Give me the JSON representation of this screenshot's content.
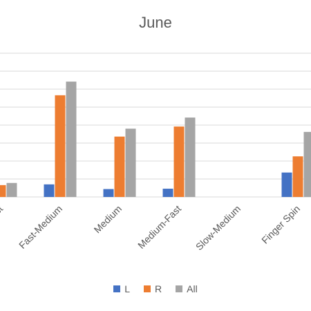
{
  "chart_data": {
    "type": "bar",
    "title": "June",
    "categories": [
      "Fast",
      "Fast-Medium",
      "Medium",
      "Medium-Fast",
      "Slow-Medium",
      "Finger Spin"
    ],
    "series": [
      {
        "name": "L",
        "color": "#4472C4",
        "values": [
          0,
          3.5,
          2.2,
          2.3,
          0,
          6.8
        ]
      },
      {
        "name": "R",
        "color": "#ED7D31",
        "values": [
          3.3,
          28.3,
          16.8,
          19.6,
          0,
          11.3
        ]
      },
      {
        "name": "All",
        "color": "#A5A5A5",
        "values": [
          3.9,
          32.1,
          19.0,
          22.1,
          0,
          18.1
        ]
      }
    ],
    "ylim": [
      0,
      40
    ],
    "grid": true,
    "legend_position": "bottom"
  }
}
